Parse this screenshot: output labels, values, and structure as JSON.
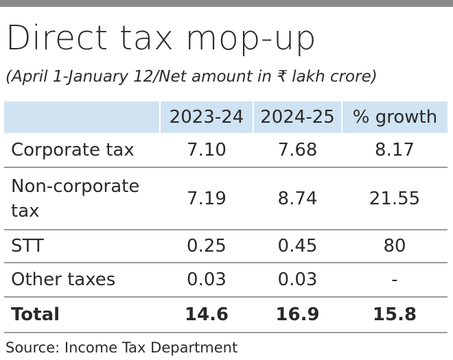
{
  "title": "Direct tax mop-up",
  "subtitle": "(April 1-January 12/Net amount in ₹ lakh crore)",
  "source": "Source: Income Tax Department",
  "colors": {
    "header_fill": "#cfe3f2",
    "top_rule": "#8a8a8a",
    "row_divider": "#9a9a9a",
    "text": "#2a2a2a"
  },
  "chart_data": {
    "type": "table",
    "title": "Direct tax mop-up",
    "subtitle": "(April 1-January 12/Net amount in ₹ lakh crore)",
    "columns": [
      "",
      "2023-24",
      "2024-25",
      "% growth"
    ],
    "rows": [
      {
        "label": "Corporate tax",
        "values": [
          "7.10",
          "7.68",
          "8.17"
        ]
      },
      {
        "label": "Non-corporate tax",
        "values": [
          "7.19",
          "8.74",
          "21.55"
        ]
      },
      {
        "label": "STT",
        "values": [
          "0.25",
          "0.45",
          "80"
        ]
      },
      {
        "label": "Other taxes",
        "values": [
          "0.03",
          "0.03",
          "-"
        ]
      }
    ],
    "total": {
      "label": "Total",
      "values": [
        "14.6",
        "16.9",
        "15.8"
      ]
    }
  }
}
